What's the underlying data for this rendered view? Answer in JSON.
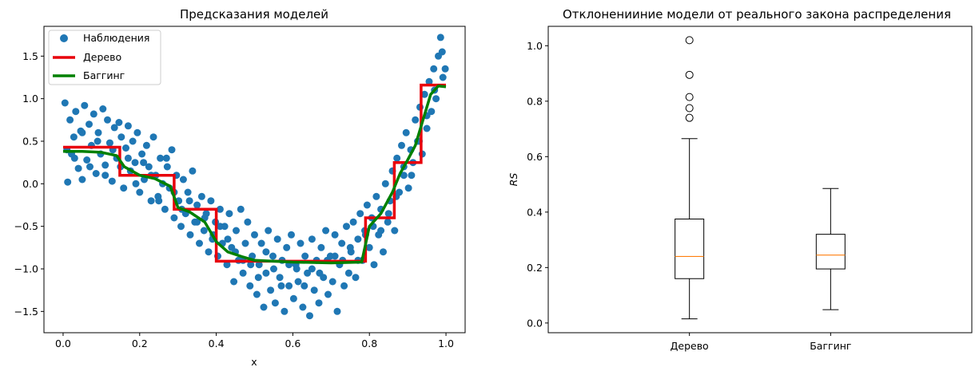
{
  "chart_data": [
    {
      "type": "scatter+line",
      "title": "Предсказания моделей",
      "xlabel": "x",
      "ylabel": "",
      "xlim": [
        -0.05,
        1.05
      ],
      "ylim": [
        -1.75,
        1.85
      ],
      "xticks": [
        0.0,
        0.2,
        0.4,
        0.6,
        0.8,
        1.0
      ],
      "xtick_labels": [
        "0.0",
        "0.2",
        "0.4",
        "0.6",
        "0.8",
        "1.0"
      ],
      "yticks": [
        -1.5,
        -1.0,
        -0.5,
        0.0,
        0.5,
        1.0,
        1.5
      ],
      "ytick_labels": [
        "−1.5",
        "−1.0",
        "−0.5",
        "0.0",
        "0.5",
        "1.0",
        "1.5"
      ],
      "legend_position": "top-left",
      "grid": false,
      "scatter": {
        "name": "Наблюдения",
        "color": "#1f77b4",
        "points": [
          [
            0.005,
            0.95
          ],
          [
            0.012,
            0.02
          ],
          [
            0.018,
            0.75
          ],
          [
            0.022,
            0.35
          ],
          [
            0.028,
            0.55
          ],
          [
            0.033,
            0.85
          ],
          [
            0.04,
            0.18
          ],
          [
            0.046,
            0.62
          ],
          [
            0.05,
            0.05
          ],
          [
            0.056,
            0.92
          ],
          [
            0.062,
            0.28
          ],
          [
            0.068,
            0.7
          ],
          [
            0.074,
            0.45
          ],
          [
            0.08,
            0.82
          ],
          [
            0.086,
            0.12
          ],
          [
            0.092,
            0.6
          ],
          [
            0.098,
            0.35
          ],
          [
            0.104,
            0.88
          ],
          [
            0.11,
            0.22
          ],
          [
            0.116,
            0.75
          ],
          [
            0.122,
            0.48
          ],
          [
            0.128,
            0.03
          ],
          [
            0.134,
            0.66
          ],
          [
            0.14,
            0.3
          ],
          [
            0.146,
            0.72
          ],
          [
            0.152,
            0.55
          ],
          [
            0.158,
            -0.05
          ],
          [
            0.164,
            0.42
          ],
          [
            0.17,
            0.68
          ],
          [
            0.176,
            0.15
          ],
          [
            0.182,
            0.5
          ],
          [
            0.188,
            0.25
          ],
          [
            0.194,
            0.6
          ],
          [
            0.2,
            -0.1
          ],
          [
            0.206,
            0.35
          ],
          [
            0.212,
            0.05
          ],
          [
            0.218,
            0.45
          ],
          [
            0.224,
            0.2
          ],
          [
            0.23,
            -0.2
          ],
          [
            0.236,
            0.55
          ],
          [
            0.242,
            0.1
          ],
          [
            0.248,
            -0.15
          ],
          [
            0.254,
            0.3
          ],
          [
            0.26,
            0.0
          ],
          [
            0.266,
            -0.3
          ],
          [
            0.272,
            0.2
          ],
          [
            0.278,
            -0.05
          ],
          [
            0.284,
            0.4
          ],
          [
            0.29,
            -0.4
          ],
          [
            0.296,
            0.1
          ],
          [
            0.302,
            -0.2
          ],
          [
            0.308,
            -0.5
          ],
          [
            0.314,
            0.05
          ],
          [
            0.32,
            -0.35
          ],
          [
            0.326,
            -0.1
          ],
          [
            0.332,
            -0.6
          ],
          [
            0.338,
            0.15
          ],
          [
            0.344,
            -0.45
          ],
          [
            0.35,
            -0.25
          ],
          [
            0.356,
            -0.7
          ],
          [
            0.362,
            -0.15
          ],
          [
            0.368,
            -0.55
          ],
          [
            0.374,
            -0.35
          ],
          [
            0.38,
            -0.8
          ],
          [
            0.386,
            -0.2
          ],
          [
            0.392,
            -0.6
          ],
          [
            0.398,
            -0.45
          ],
          [
            0.404,
            -0.85
          ],
          [
            0.41,
            -0.3
          ],
          [
            0.416,
            -0.7
          ],
          [
            0.422,
            -0.5
          ],
          [
            0.428,
            -0.95
          ],
          [
            0.434,
            -0.35
          ],
          [
            0.44,
            -0.75
          ],
          [
            0.446,
            -1.15
          ],
          [
            0.452,
            -0.55
          ],
          [
            0.458,
            -0.9
          ],
          [
            0.464,
            -0.3
          ],
          [
            0.47,
            -1.05
          ],
          [
            0.476,
            -0.7
          ],
          [
            0.482,
            -0.45
          ],
          [
            0.488,
            -1.2
          ],
          [
            0.494,
            -0.85
          ],
          [
            0.5,
            -0.6
          ],
          [
            0.506,
            -1.3
          ],
          [
            0.512,
            -0.95
          ],
          [
            0.518,
            -0.7
          ],
          [
            0.524,
            -1.45
          ],
          [
            0.53,
            -1.05
          ],
          [
            0.536,
            -0.55
          ],
          [
            0.542,
            -1.25
          ],
          [
            0.548,
            -0.85
          ],
          [
            0.554,
            -1.4
          ],
          [
            0.56,
            -0.65
          ],
          [
            0.566,
            -1.1
          ],
          [
            0.572,
            -0.9
          ],
          [
            0.578,
            -1.5
          ],
          [
            0.584,
            -0.75
          ],
          [
            0.59,
            -1.2
          ],
          [
            0.596,
            -0.6
          ],
          [
            0.602,
            -1.35
          ],
          [
            0.608,
            -0.95
          ],
          [
            0.614,
            -1.15
          ],
          [
            0.62,
            -0.7
          ],
          [
            0.626,
            -1.45
          ],
          [
            0.632,
            -0.85
          ],
          [
            0.638,
            -1.05
          ],
          [
            0.644,
            -1.55
          ],
          [
            0.65,
            -0.65
          ],
          [
            0.656,
            -1.25
          ],
          [
            0.662,
            -0.9
          ],
          [
            0.668,
            -1.4
          ],
          [
            0.674,
            -0.75
          ],
          [
            0.68,
            -1.1
          ],
          [
            0.686,
            -0.55
          ],
          [
            0.692,
            -1.3
          ],
          [
            0.698,
            -0.85
          ],
          [
            0.704,
            -1.15
          ],
          [
            0.71,
            -0.6
          ],
          [
            0.716,
            -1.5
          ],
          [
            0.722,
            -0.95
          ],
          [
            0.728,
            -0.7
          ],
          [
            0.734,
            -1.2
          ],
          [
            0.74,
            -0.5
          ],
          [
            0.746,
            -1.05
          ],
          [
            0.752,
            -0.8
          ],
          [
            0.758,
            -0.45
          ],
          [
            0.764,
            -1.1
          ],
          [
            0.77,
            -0.65
          ],
          [
            0.776,
            -0.35
          ],
          [
            0.782,
            -0.9
          ],
          [
            0.788,
            -0.55
          ],
          [
            0.794,
            -0.25
          ],
          [
            0.8,
            -0.75
          ],
          [
            0.806,
            -0.4
          ],
          [
            0.812,
            -0.95
          ],
          [
            0.818,
            -0.15
          ],
          [
            0.824,
            -0.6
          ],
          [
            0.83,
            -0.3
          ],
          [
            0.836,
            -0.8
          ],
          [
            0.842,
            0.0
          ],
          [
            0.848,
            -0.45
          ],
          [
            0.854,
            -0.2
          ],
          [
            0.86,
            0.15
          ],
          [
            0.866,
            -0.55
          ],
          [
            0.872,
            0.3
          ],
          [
            0.878,
            -0.1
          ],
          [
            0.884,
            0.45
          ],
          [
            0.89,
            0.1
          ],
          [
            0.896,
            0.6
          ],
          [
            0.902,
            -0.05
          ],
          [
            0.908,
            0.4
          ],
          [
            0.914,
            0.25
          ],
          [
            0.92,
            0.75
          ],
          [
            0.926,
            0.5
          ],
          [
            0.932,
            0.9
          ],
          [
            0.938,
            0.35
          ],
          [
            0.944,
            1.05
          ],
          [
            0.95,
            0.65
          ],
          [
            0.956,
            1.2
          ],
          [
            0.962,
            0.85
          ],
          [
            0.968,
            1.35
          ],
          [
            0.974,
            1.0
          ],
          [
            0.98,
            1.5
          ],
          [
            0.986,
            1.72
          ],
          [
            0.992,
            1.25
          ],
          [
            0.998,
            1.35
          ],
          [
            0.01,
            0.4
          ],
          [
            0.03,
            0.3
          ],
          [
            0.05,
            0.6
          ],
          [
            0.07,
            0.2
          ],
          [
            0.09,
            0.5
          ],
          [
            0.11,
            0.1
          ],
          [
            0.13,
            0.4
          ],
          [
            0.15,
            0.2
          ],
          [
            0.17,
            0.3
          ],
          [
            0.19,
            0.0
          ],
          [
            0.21,
            0.25
          ],
          [
            0.23,
            0.1
          ],
          [
            0.25,
            -0.2
          ],
          [
            0.27,
            0.3
          ],
          [
            0.29,
            -0.1
          ],
          [
            0.31,
            -0.3
          ],
          [
            0.33,
            -0.2
          ],
          [
            0.35,
            -0.45
          ],
          [
            0.37,
            -0.4
          ],
          [
            0.39,
            -0.65
          ],
          [
            0.41,
            -0.5
          ],
          [
            0.43,
            -0.65
          ],
          [
            0.45,
            -0.8
          ],
          [
            0.47,
            -0.9
          ],
          [
            0.49,
            -0.95
          ],
          [
            0.51,
            -1.1
          ],
          [
            0.53,
            -0.8
          ],
          [
            0.55,
            -1.0
          ],
          [
            0.57,
            -1.2
          ],
          [
            0.59,
            -0.95
          ],
          [
            0.61,
            -1.0
          ],
          [
            0.63,
            -1.2
          ],
          [
            0.65,
            -1.0
          ],
          [
            0.67,
            -1.05
          ],
          [
            0.69,
            -0.9
          ],
          [
            0.71,
            -0.85
          ],
          [
            0.73,
            -0.9
          ],
          [
            0.75,
            -0.75
          ],
          [
            0.77,
            -0.9
          ],
          [
            0.79,
            -0.6
          ],
          [
            0.81,
            -0.5
          ],
          [
            0.83,
            -0.55
          ],
          [
            0.85,
            -0.35
          ],
          [
            0.87,
            -0.15
          ],
          [
            0.89,
            0.2
          ],
          [
            0.91,
            0.1
          ],
          [
            0.93,
            0.5
          ],
          [
            0.95,
            0.8
          ],
          [
            0.97,
            1.1
          ],
          [
            0.99,
            1.55
          ]
        ]
      },
      "series": [
        {
          "name": "Дерево",
          "color": "#e8000b",
          "step_x": [
            0.0,
            0.148,
            0.148,
            0.29,
            0.29,
            0.4,
            0.4,
            0.79,
            0.79,
            0.865,
            0.865,
            0.935,
            0.935,
            1.0
          ],
          "step_y": [
            0.43,
            0.43,
            0.1,
            0.1,
            -0.3,
            -0.3,
            -0.91,
            -0.91,
            -0.4,
            -0.4,
            0.25,
            0.25,
            1.16,
            1.16
          ]
        },
        {
          "name": "Баггинг",
          "color": "#008000",
          "x": [
            0.0,
            0.05,
            0.1,
            0.14,
            0.16,
            0.2,
            0.24,
            0.28,
            0.3,
            0.33,
            0.37,
            0.4,
            0.43,
            0.47,
            0.5,
            0.6,
            0.7,
            0.78,
            0.8,
            0.83,
            0.86,
            0.88,
            0.9,
            0.92,
            0.94,
            0.96,
            0.98,
            1.0
          ],
          "y": [
            0.38,
            0.38,
            0.37,
            0.33,
            0.2,
            0.1,
            0.06,
            -0.03,
            -0.28,
            -0.33,
            -0.45,
            -0.68,
            -0.8,
            -0.86,
            -0.9,
            -0.92,
            -0.93,
            -0.92,
            -0.5,
            -0.35,
            -0.1,
            0.12,
            0.28,
            0.45,
            0.75,
            1.05,
            1.15,
            1.14
          ]
        }
      ]
    },
    {
      "type": "boxplot",
      "title": "Отклоненииние модели от реального закона распределения",
      "xlabel": "",
      "ylabel": "RS",
      "ylim": [
        -0.035,
        1.07
      ],
      "yticks": [
        0.0,
        0.2,
        0.4,
        0.6,
        0.8,
        1.0
      ],
      "ytick_labels": [
        "0.0",
        "0.2",
        "0.4",
        "0.6",
        "0.8",
        "1.0"
      ],
      "categories": [
        "Дерево",
        "Баггинг"
      ],
      "boxes": [
        {
          "whisker_low": 0.015,
          "q1": 0.16,
          "median": 0.24,
          "q3": 0.375,
          "whisker_high": 0.665,
          "outliers": [
            0.74,
            0.775,
            0.815,
            0.895,
            1.02
          ]
        },
        {
          "whisker_low": 0.048,
          "q1": 0.195,
          "median": 0.245,
          "q3": 0.32,
          "whisker_high": 0.485,
          "outliers": []
        }
      ],
      "median_color": "#ff7f0e"
    }
  ]
}
